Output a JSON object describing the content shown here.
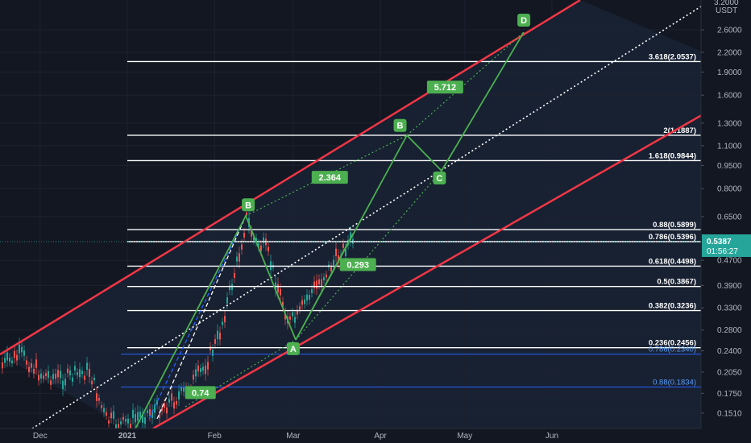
{
  "chart_data": {
    "type": "line",
    "currency": "USDT",
    "yaxis_top_partial": "3.2000",
    "current_price": "0.5387",
    "countdown": "01:56:27",
    "colors": {
      "background": "#131722",
      "channel": "#f23645",
      "pattern": "#4caf50",
      "fib_white": "#ffffff",
      "fib_blue": "#2962ff",
      "candle_up": "#26a69a",
      "candle_down": "#ef5350"
    },
    "x_ticks": [
      "Dec",
      "2021",
      "Feb",
      "Mar",
      "Apr",
      "May",
      "Jun"
    ],
    "y_ticks": [
      {
        "label": "2.6000",
        "value": 2.6
      },
      {
        "label": "2.2000",
        "value": 2.2
      },
      {
        "label": "1.9000",
        "value": 1.9
      },
      {
        "label": "1.6000",
        "value": 1.6
      },
      {
        "label": "1.3000",
        "value": 1.3
      },
      {
        "label": "1.1000",
        "value": 1.1
      },
      {
        "label": "0.9500",
        "value": 0.95
      },
      {
        "label": "0.8000",
        "value": 0.8
      },
      {
        "label": "0.6500",
        "value": 0.65
      },
      {
        "label": "0.4700",
        "value": 0.47
      },
      {
        "label": "0.3900",
        "value": 0.39
      },
      {
        "label": "0.3300",
        "value": 0.33
      },
      {
        "label": "0.2800",
        "value": 0.28
      },
      {
        "label": "0.2400",
        "value": 0.24
      },
      {
        "label": "0.2050",
        "value": 0.205
      },
      {
        "label": "0.1750",
        "value": 0.175
      },
      {
        "label": "0.1510",
        "value": 0.151
      }
    ],
    "fib_levels": [
      {
        "label": "3.618(2.0537)",
        "value": 2.0537,
        "color": "white"
      },
      {
        "label": "2(1.1887)",
        "value": 1.1887,
        "color": "white"
      },
      {
        "label": "1.618(0.9844)",
        "value": 0.9844,
        "color": "white"
      },
      {
        "label": "0.88(0.5899)",
        "value": 0.5899,
        "color": "white"
      },
      {
        "label": "0.786(0.5396)",
        "value": 0.5396,
        "color": "white"
      },
      {
        "label": "0.618(0.4498)",
        "value": 0.4498,
        "color": "white"
      },
      {
        "label": "0.5(0.3867)",
        "value": 0.3867,
        "color": "white"
      },
      {
        "label": "0.382(0.3236)",
        "value": 0.3236,
        "color": "white"
      },
      {
        "label": "0.236(0.2456)",
        "value": 0.2456,
        "color": "white"
      },
      {
        "label": "0.786(0.2340)",
        "value": 0.234,
        "color": "blue"
      },
      {
        "label": "0.88(0.1834)",
        "value": 0.1834,
        "color": "blue"
      }
    ],
    "pattern_points": [
      {
        "label": "B",
        "date": "2021-02-13",
        "price": 0.66
      },
      {
        "label": "A",
        "date": "2021-03-01",
        "price": 0.262
      },
      {
        "label": "B",
        "date": "2021-04-08",
        "price": 1.19
      },
      {
        "label": "C",
        "date": "2021-04-22",
        "price": 0.93
      },
      {
        "label": "D",
        "date": "2021-05-22",
        "price": 2.6
      }
    ],
    "ratio_labels": [
      {
        "label": "0.74",
        "date": "2021-01-27",
        "price": 0.176
      },
      {
        "label": "0.293",
        "date": "2021-03-24",
        "price": 0.455
      },
      {
        "label": "2.364",
        "date": "2021-03-14",
        "price": 0.87
      },
      {
        "label": "5.712",
        "date": "2021-04-24",
        "price": 1.7
      }
    ]
  }
}
